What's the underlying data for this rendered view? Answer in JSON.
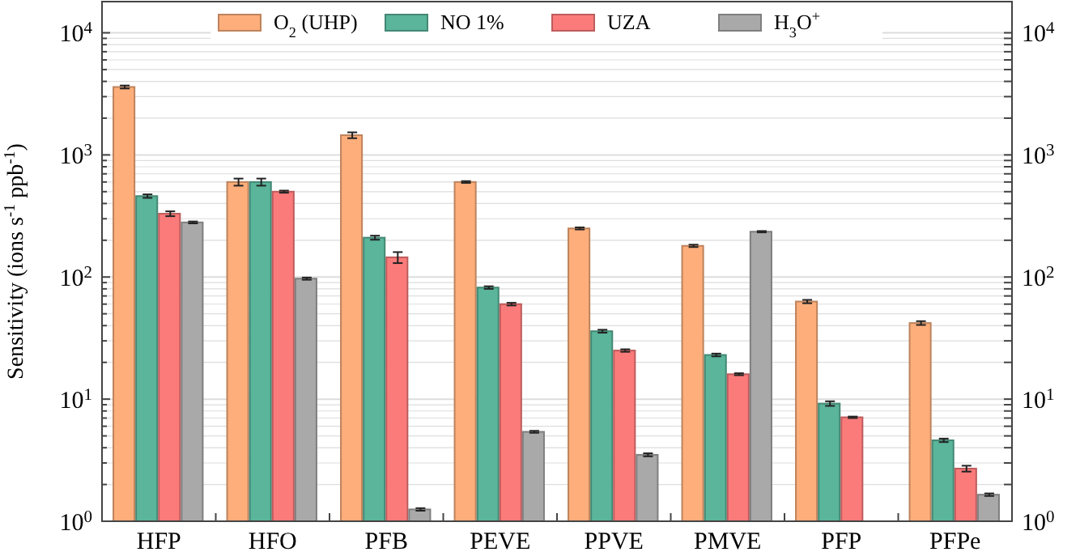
{
  "chart_data": {
    "type": "bar",
    "ylabel": "Sensitivity (ions s$^{-1}$ ppb$^{-1}$)",
    "categories": [
      "HFP",
      "HFO",
      "PFB",
      "PEVE",
      "PPVE",
      "PMVE",
      "PFP",
      "PFPe"
    ],
    "series": [
      {
        "name": "O$_{2}$ (UHP)",
        "color": "#fdae7b",
        "values": [
          3600,
          600,
          1450,
          600,
          250,
          180,
          63,
          42
        ],
        "errors": [
          100,
          40,
          80,
          10,
          5,
          4,
          2,
          1.5
        ]
      },
      {
        "name": "NO 1%",
        "color": "#5ab59a",
        "values": [
          460,
          600,
          210,
          82,
          36,
          23,
          9.2,
          4.6
        ],
        "errors": [
          15,
          40,
          8,
          2,
          1,
          0.6,
          0.4,
          0.15
        ]
      },
      {
        "name": "UZA",
        "color": "#fb7b7b",
        "values": [
          330,
          500,
          145,
          60,
          25,
          16,
          7.1,
          2.7
        ],
        "errors": [
          15,
          10,
          15,
          1.5,
          0.6,
          0.3,
          0.1,
          0.15
        ]
      },
      {
        "name": "H$_{3}$O$^{+}$",
        "color": "#a9a9a9",
        "values": [
          280,
          97,
          1.25,
          5.4,
          3.5,
          235,
          null,
          1.65
        ],
        "errors": [
          5,
          2,
          0.03,
          0.1,
          0.1,
          3,
          null,
          0.04
        ]
      }
    ],
    "log": "y",
    "ylim": [
      1,
      18000
    ],
    "yticks": [
      {
        "value": 1,
        "label": "10$^{0}$"
      },
      {
        "value": 2,
        "label": null
      },
      {
        "value": 3,
        "label": null
      },
      {
        "value": 4,
        "label": null
      },
      {
        "value": 5,
        "label": null
      },
      {
        "value": 6,
        "label": null
      },
      {
        "value": 7,
        "label": null
      },
      {
        "value": 8,
        "label": null
      },
      {
        "value": 9,
        "label": null
      },
      {
        "value": 10,
        "label": "10$^{1}$"
      },
      {
        "value": 20,
        "label": null
      },
      {
        "value": 30,
        "label": null
      },
      {
        "value": 40,
        "label": null
      },
      {
        "value": 50,
        "label": null
      },
      {
        "value": 60,
        "label": null
      },
      {
        "value": 70,
        "label": null
      },
      {
        "value": 80,
        "label": null
      },
      {
        "value": 90,
        "label": null
      },
      {
        "value": 100,
        "label": "10$^{2}$"
      },
      {
        "value": 200,
        "label": null
      },
      {
        "value": 300,
        "label": null
      },
      {
        "value": 400,
        "label": null
      },
      {
        "value": 500,
        "label": null
      },
      {
        "value": 600,
        "label": null
      },
      {
        "value": 700,
        "label": null
      },
      {
        "value": 800,
        "label": null
      },
      {
        "value": 900,
        "label": null
      },
      {
        "value": 1000,
        "label": "10$^{3}$"
      },
      {
        "value": 2000,
        "label": null
      },
      {
        "value": 3000,
        "label": null
      },
      {
        "value": 4000,
        "label": null
      },
      {
        "value": 5000,
        "label": null
      },
      {
        "value": 6000,
        "label": null
      },
      {
        "value": 7000,
        "label": null
      },
      {
        "value": 8000,
        "label": null
      },
      {
        "value": 9000,
        "label": null
      },
      {
        "value": 10000,
        "label": "10$^{4}$"
      }
    ],
    "grid": "y",
    "legend": "top"
  }
}
